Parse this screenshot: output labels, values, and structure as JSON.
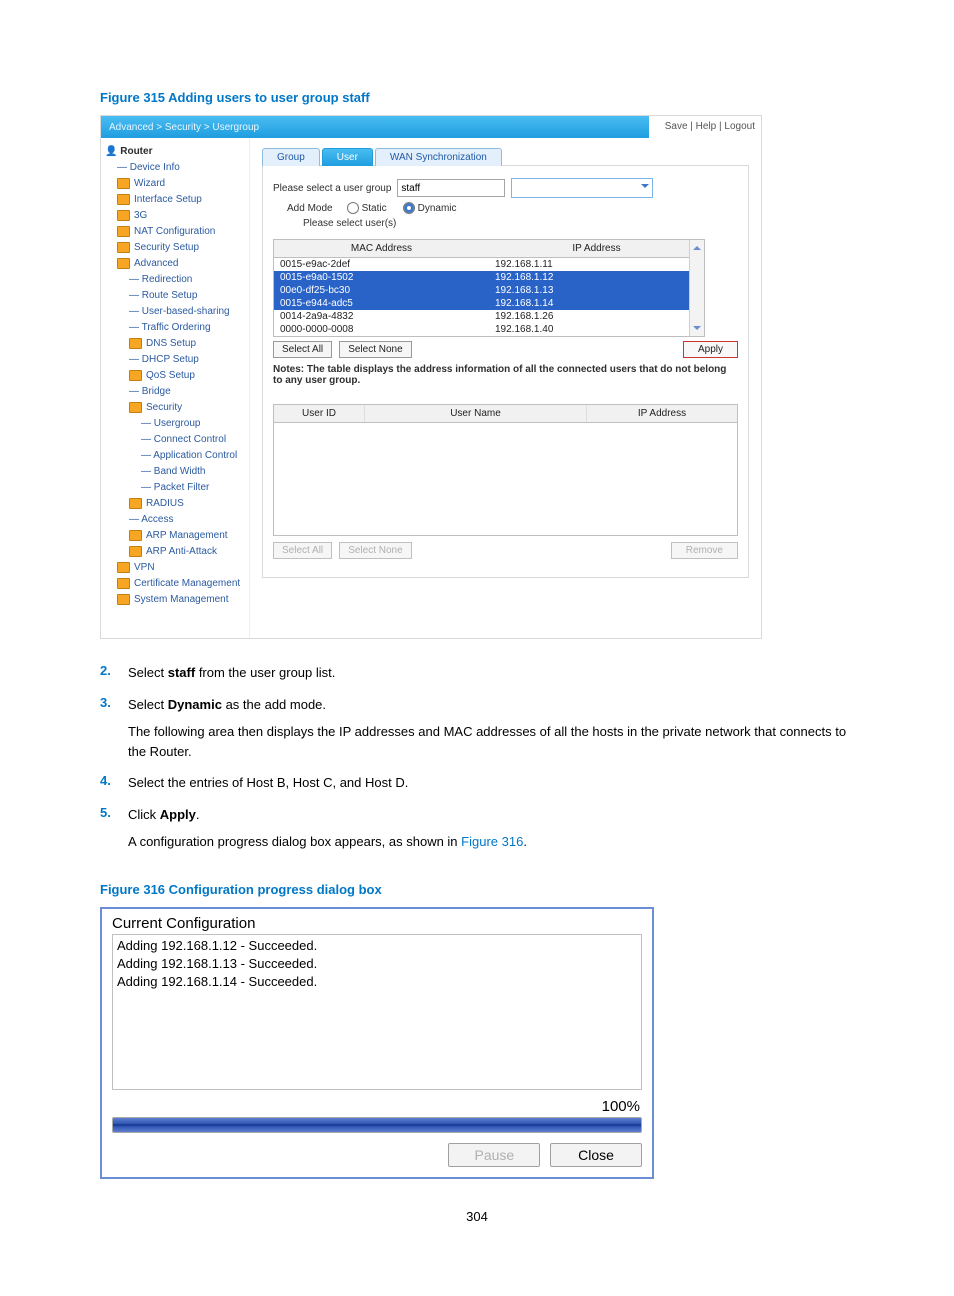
{
  "page_number": "304",
  "figure315": {
    "title": "Figure 315 Adding users to user group staff",
    "breadcrumb": "Advanced > Security > Usergroup",
    "toplinks": "Save | Help | Logout",
    "tree_root": "Router",
    "tree": [
      {
        "lvl": 1,
        "ico": false,
        "t": "Device Info"
      },
      {
        "lvl": 1,
        "ico": true,
        "t": "Wizard"
      },
      {
        "lvl": 1,
        "ico": true,
        "t": "Interface Setup"
      },
      {
        "lvl": 1,
        "ico": true,
        "t": "3G"
      },
      {
        "lvl": 1,
        "ico": true,
        "t": "NAT Configuration"
      },
      {
        "lvl": 1,
        "ico": true,
        "t": "Security Setup"
      },
      {
        "lvl": 1,
        "ico": true,
        "t": "Advanced"
      },
      {
        "lvl": 2,
        "ico": false,
        "t": "Redirection"
      },
      {
        "lvl": 2,
        "ico": false,
        "t": "Route Setup"
      },
      {
        "lvl": 2,
        "ico": false,
        "t": "User-based-sharing"
      },
      {
        "lvl": 2,
        "ico": false,
        "t": "Traffic Ordering"
      },
      {
        "lvl": 2,
        "ico": true,
        "t": "DNS Setup"
      },
      {
        "lvl": 2,
        "ico": false,
        "t": "DHCP Setup"
      },
      {
        "lvl": 2,
        "ico": true,
        "t": "QoS Setup"
      },
      {
        "lvl": 2,
        "ico": false,
        "t": "Bridge"
      },
      {
        "lvl": 2,
        "ico": true,
        "t": "Security"
      },
      {
        "lvl": 3,
        "ico": false,
        "t": "Usergroup"
      },
      {
        "lvl": 3,
        "ico": false,
        "t": "Connect Control"
      },
      {
        "lvl": 3,
        "ico": false,
        "t": "Application Control"
      },
      {
        "lvl": 3,
        "ico": false,
        "t": "Band Width"
      },
      {
        "lvl": 3,
        "ico": false,
        "t": "Packet Filter"
      },
      {
        "lvl": 2,
        "ico": true,
        "t": "RADIUS"
      },
      {
        "lvl": 2,
        "ico": false,
        "t": "Access"
      },
      {
        "lvl": 2,
        "ico": true,
        "t": "ARP Management"
      },
      {
        "lvl": 2,
        "ico": true,
        "t": "ARP Anti-Attack"
      },
      {
        "lvl": 1,
        "ico": true,
        "t": "VPN"
      },
      {
        "lvl": 1,
        "ico": true,
        "t": "Certificate Management"
      },
      {
        "lvl": 1,
        "ico": true,
        "t": "System Management"
      }
    ],
    "tabs": {
      "group": "Group",
      "user": "User",
      "wan": "WAN Synchronization"
    },
    "select_label": "Please select a user group",
    "select_value": "staff",
    "addmode_label": "Add Mode",
    "static_label": "Static",
    "dynamic_label": "Dynamic",
    "please_select_users": "Please select user(s)",
    "mac_hd": "MAC Address",
    "ip_hd": "IP Address",
    "mac_rows": [
      {
        "mac": "0015-e9ac-2def",
        "ip": "192.168.1.11",
        "sel": false
      },
      {
        "mac": "0015-e9a0-1502",
        "ip": "192.168.1.12",
        "sel": true
      },
      {
        "mac": "00e0-df25-bc30",
        "ip": "192.168.1.13",
        "sel": true
      },
      {
        "mac": "0015-e944-adc5",
        "ip": "192.168.1.14",
        "sel": true
      },
      {
        "mac": "0014-2a9a-4832",
        "ip": "192.168.1.26",
        "sel": false
      },
      {
        "mac": "0000-0000-0008",
        "ip": "192.168.1.40",
        "sel": false
      }
    ],
    "select_all": "Select All",
    "select_none": "Select None",
    "apply": "Apply",
    "notes": "Notes: The table displays the address information of all the connected users that do not belong to any user group.",
    "usertbl": {
      "c1": "User ID",
      "c2": "User Name",
      "c3": "IP Address"
    },
    "remove": "Remove"
  },
  "steps": [
    {
      "n": "2.",
      "html": "Select <b>staff</b> from the user group list."
    },
    {
      "n": "3.",
      "html": "Select <b>Dynamic</b> as the add mode.",
      "p": "The following area then displays the IP addresses and MAC addresses of all the hosts in the private network that connects to the Router."
    },
    {
      "n": "4.",
      "html": "Select the entries of Host B, Host C, and Host D."
    },
    {
      "n": "5.",
      "html": "Click <b>Apply</b>.",
      "p": "A configuration progress dialog box appears, as shown in <a class='figlink' href='#'>Figure 316</a>."
    }
  ],
  "figure316": {
    "title": "Figure 316 Configuration progress dialog box",
    "heading": "Current Configuration",
    "lines": [
      "Adding 192.168.1.12 - Succeeded.",
      "Adding 192.168.1.13 - Succeeded.",
      "Adding 192.168.1.14 - Succeeded."
    ],
    "percent": "100%",
    "pause": "Pause",
    "close": "Close"
  }
}
